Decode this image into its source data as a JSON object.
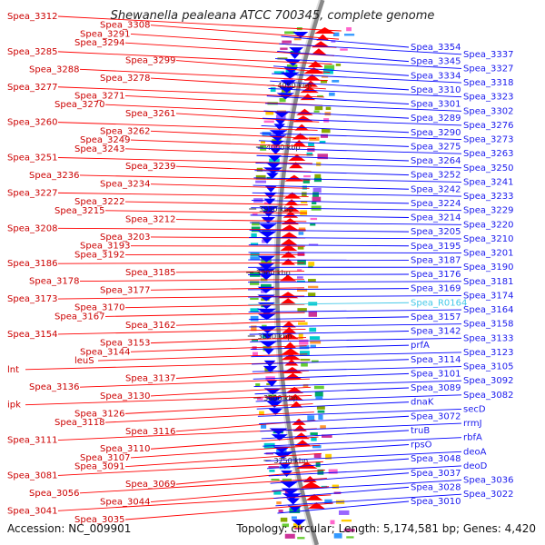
{
  "title": "Shewanella pealeana ATCC 700345, complete genome",
  "footer": {
    "accession": "Accession: NC_009901",
    "summary": "Topology: circular; Length: 5,174,581 bp; Genes: 4,420"
  },
  "colors": {
    "forward": "#ff0000",
    "reverse": "#0000ff",
    "rna": "#44c8e8",
    "backbone": "#888888",
    "label_left": "#cc0000",
    "label_right": "#1a1aee"
  },
  "ruler": [
    {
      "label": "4050 kbp"
    },
    {
      "label": "4000 kbp"
    },
    {
      "label": "3950 kbp"
    },
    {
      "label": "3900 kbp"
    },
    {
      "label": "3850 kbp"
    },
    {
      "label": "3800 kbp"
    },
    {
      "label": "3750 kbp"
    }
  ],
  "left_labels": [
    "Spea_3312",
    "Spea_3308",
    "Spea_3291",
    "Spea_3294",
    "Spea_3285",
    "Spea_3299",
    "Spea_3288",
    "Spea_3278",
    "Spea_3277",
    "Spea_3271",
    "Spea_3270",
    "Spea_3261",
    "Spea_3260",
    "Spea_3262",
    "Spea_3249",
    "Spea_3243",
    "Spea_3251",
    "Spea_3239",
    "Spea_3236",
    "Spea_3234",
    "Spea_3227",
    "Spea_3222",
    "Spea_3215",
    "Spea_3212",
    "Spea_3208",
    "Spea_3203",
    "Spea_3193",
    "Spea_3192",
    "Spea_3186",
    "Spea_3185",
    "Spea_3178",
    "Spea_3177",
    "Spea_3173",
    "Spea_3170",
    "Spea_3167",
    "Spea_3162",
    "Spea_3154",
    "Spea_3153",
    "Spea_3144",
    "leuS",
    "lnt",
    "Spea_3137",
    "Spea_3136",
    "Spea_3130",
    "ipk",
    "Spea_3126",
    "Spea_3118",
    "Spea_3116",
    "Spea_3111",
    "Spea_3110",
    "Spea_3107",
    "Spea_3091",
    "Spea_3081",
    "Spea_3069",
    "Spea_3056",
    "Spea_3044",
    "Spea_3041",
    "Spea_3035"
  ],
  "right_labels": [
    "Spea_3354",
    "Spea_3337",
    "Spea_3345",
    "Spea_3327",
    "Spea_3334",
    "Spea_3318",
    "Spea_3310",
    "Spea_3323",
    "Spea_3301",
    "Spea_3302",
    "Spea_3289",
    "Spea_3276",
    "Spea_3290",
    "Spea_3273",
    "Spea_3275",
    "Spea_3263",
    "Spea_3264",
    "Spea_3250",
    "Spea_3252",
    "Spea_3241",
    "Spea_3242",
    "Spea_3233",
    "Spea_3224",
    "Spea_3229",
    "Spea_3214",
    "Spea_3220",
    "Spea_3205",
    "Spea_3210",
    "Spea_3195",
    "Spea_3201",
    "Spea_3187",
    "Spea_3190",
    "Spea_3176",
    "Spea_3181",
    "Spea_3169",
    "Spea_3174",
    "Spea_R0164",
    "Spea_3164",
    "Spea_3157",
    "Spea_3158",
    "Spea_3142",
    "Spea_3133",
    "prfA",
    "Spea_3123",
    "Spea_3114",
    "Spea_3105",
    "Spea_3101",
    "Spea_3092",
    "Spea_3089",
    "Spea_3082",
    "dnaK",
    "secD",
    "Spea_3072",
    "rrmJ",
    "truB",
    "rbfA",
    "rpsO",
    "deoA",
    "Spea_3048",
    "deoD",
    "Spea_3037",
    "Spea_3036",
    "Spea_3028",
    "Spea_3022",
    "Spea_3010"
  ],
  "rna_labels": [
    "Spea_R0164"
  ]
}
